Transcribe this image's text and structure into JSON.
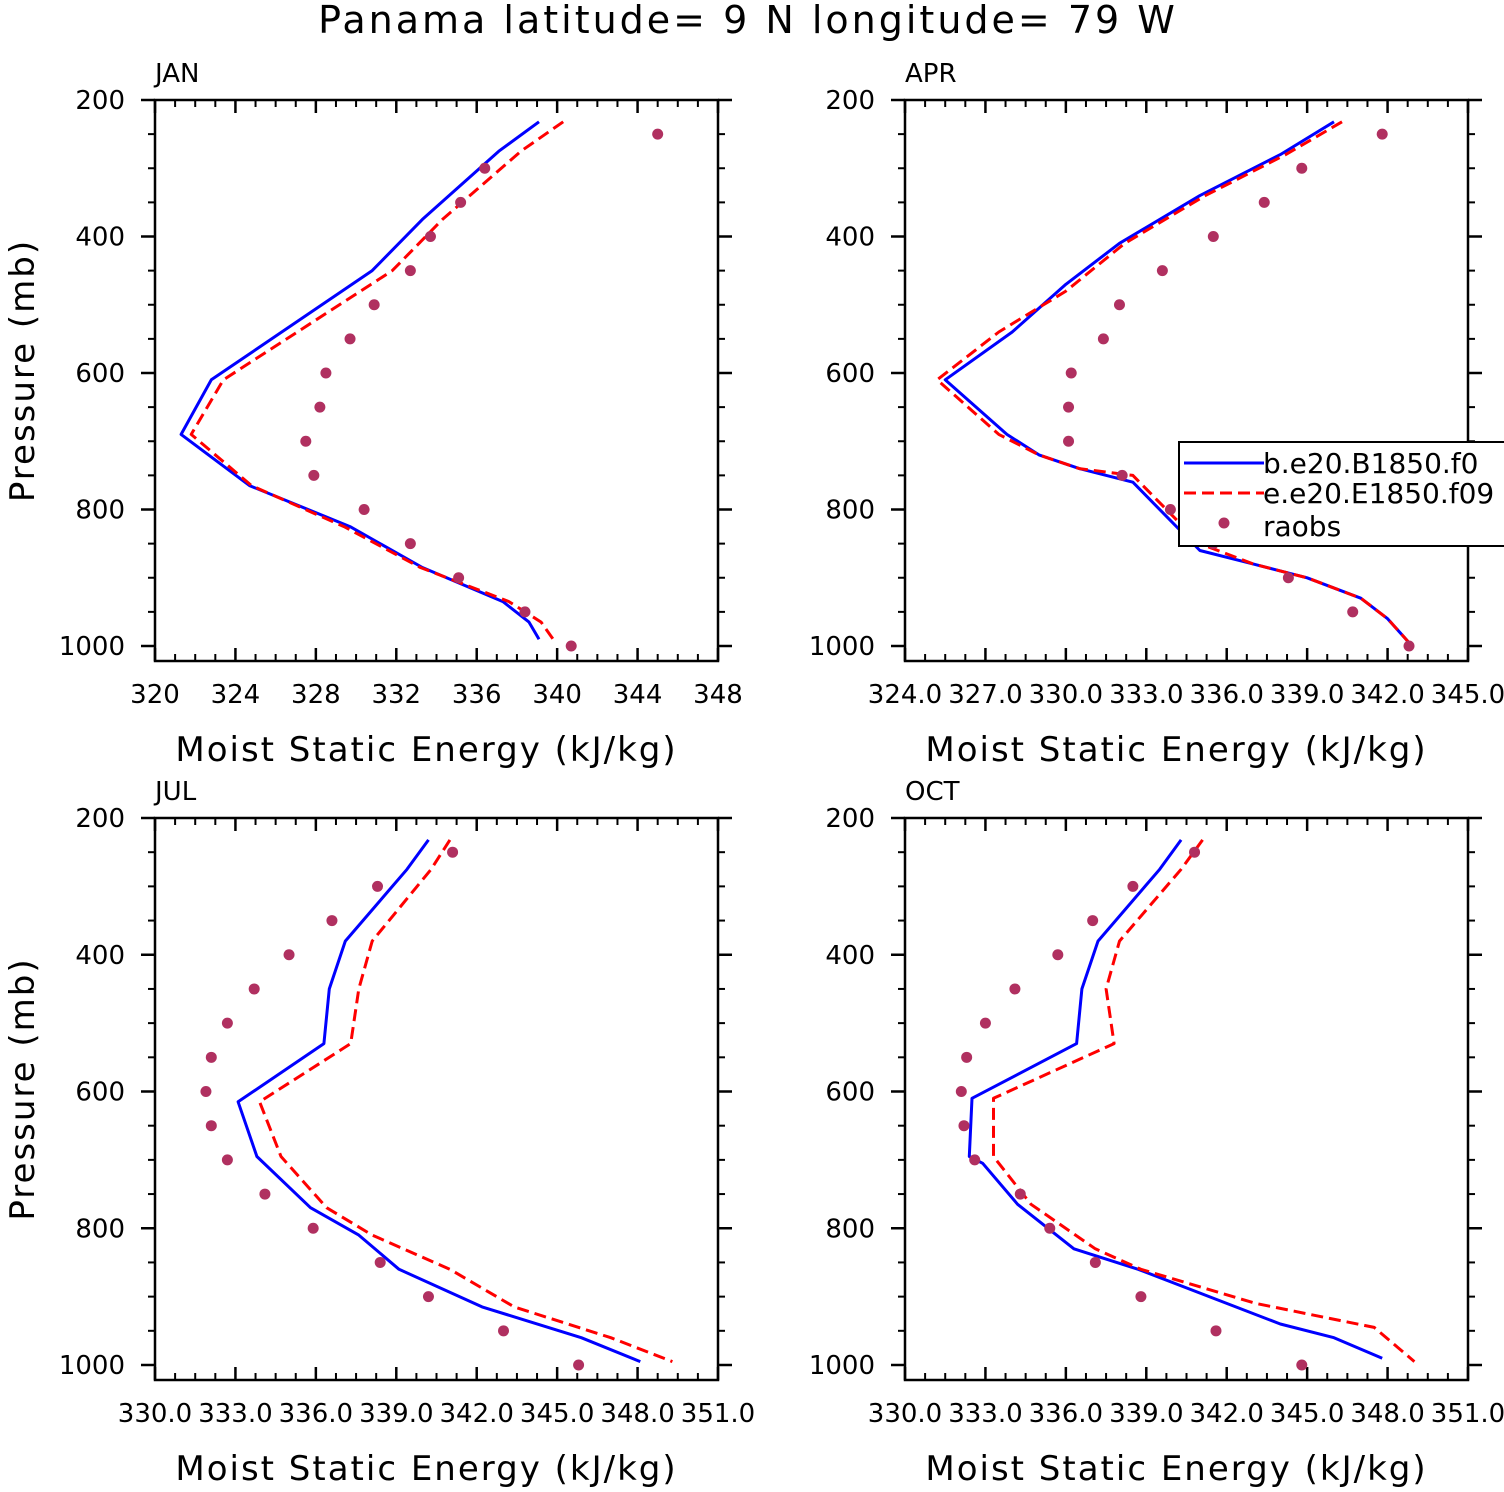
{
  "title": "Panama  latitude= 9 N longitude= 79 W",
  "colors": {
    "b_series": "#0000ff",
    "e_series": "#ff0000",
    "raobs": "#b03060"
  },
  "legend": {
    "items": [
      {
        "name": "b.e20.B1850.f0",
        "style": "solid-line",
        "color": "#0000ff"
      },
      {
        "name": "e.e20.E1850.f09",
        "style": "dashed-line",
        "color": "#ff0000"
      },
      {
        "name": "raobs",
        "style": "markers",
        "color": "#b03060"
      }
    ]
  },
  "chart_data": [
    {
      "type": "line",
      "panel": "JAN",
      "xlabel": "Moist Static Energy (kJ/kg)",
      "ylabel": "Pressure (mb)",
      "xlim": [
        320,
        348
      ],
      "ylim": [
        200,
        1000
      ],
      "x_ticks": [
        "320",
        "324",
        "328",
        "332",
        "336",
        "340",
        "344",
        "348"
      ],
      "y_ticks": [
        "200",
        "400",
        "600",
        "800",
        "1000"
      ],
      "series": [
        {
          "name": "b.e20.B1850.f0",
          "x": [
            339.1,
            337.1,
            333.3,
            330.8,
            322.8,
            321.3,
            324.7,
            329.7,
            333.3,
            337.3,
            338.6,
            339.1
          ],
          "y": [
            232,
            275,
            375,
            450,
            610,
            690,
            765,
            825,
            885,
            935,
            965,
            990
          ]
        },
        {
          "name": "e.e20.E1850.f09",
          "x": [
            340.3,
            338.2,
            334.3,
            331.8,
            323.4,
            321.8,
            324.8,
            329.4,
            333.2,
            337.6,
            339.2,
            339.8
          ],
          "y": [
            232,
            275,
            375,
            450,
            610,
            690,
            765,
            825,
            885,
            935,
            965,
            990
          ]
        },
        {
          "name": "raobs",
          "x": [
            345.0,
            336.4,
            335.2,
            333.7,
            332.7,
            330.9,
            329.7,
            328.5,
            328.2,
            327.5,
            327.9,
            330.4,
            332.7,
            335.1,
            338.4,
            340.7
          ],
          "y": [
            250,
            300,
            350,
            400,
            450,
            500,
            550,
            600,
            650,
            700,
            750,
            800,
            850,
            900,
            950,
            1000
          ]
        }
      ]
    },
    {
      "type": "line",
      "panel": "APR",
      "xlabel": "Moist Static Energy (kJ/kg)",
      "ylabel": "Pressure (mb)",
      "xlim": [
        324.0,
        345.0
      ],
      "ylim": [
        200,
        1000
      ],
      "x_ticks": [
        "324.0",
        "327.0",
        "330.0",
        "333.0",
        "336.0",
        "339.0",
        "342.0",
        "345.0"
      ],
      "y_ticks": [
        "200",
        "400",
        "600",
        "800",
        "1000"
      ],
      "series": [
        {
          "name": "b.e20.B1850.f0",
          "x": [
            340.0,
            338.0,
            335.0,
            332.0,
            330.0,
            328.0,
            325.5,
            327.8,
            329.0,
            330.5,
            332.5,
            335.0,
            337.0,
            339.0,
            341.0,
            342.0,
            342.8
          ],
          "y": [
            232,
            280,
            340,
            410,
            470,
            540,
            610,
            690,
            720,
            740,
            760,
            860,
            880,
            900,
            930,
            960,
            995
          ]
        },
        {
          "name": "e.e20.E1850.f09",
          "x": [
            340.3,
            338.2,
            335.2,
            332.2,
            330.0,
            327.5,
            325.2,
            327.5,
            329.0,
            330.5,
            332.5,
            335.0,
            337.0,
            339.0,
            341.0,
            342.0,
            342.8
          ],
          "y": [
            232,
            280,
            340,
            410,
            480,
            540,
            610,
            690,
            720,
            740,
            750,
            850,
            880,
            900,
            930,
            960,
            995
          ]
        },
        {
          "name": "raobs",
          "x": [
            341.8,
            338.8,
            337.4,
            335.5,
            333.6,
            332.0,
            331.4,
            330.2,
            330.1,
            330.1,
            332.1,
            333.9,
            335.5,
            338.3,
            340.7,
            342.8
          ],
          "y": [
            250,
            300,
            350,
            400,
            450,
            500,
            550,
            600,
            650,
            700,
            750,
            800,
            850,
            900,
            950,
            1000
          ]
        }
      ]
    },
    {
      "type": "line",
      "panel": "JUL",
      "xlabel": "Moist Static Energy (kJ/kg)",
      "ylabel": "Pressure (mb)",
      "xlim": [
        330.0,
        351.0
      ],
      "ylim": [
        200,
        1000
      ],
      "x_ticks": [
        "330.0",
        "333.0",
        "336.0",
        "339.0",
        "342.0",
        "345.0",
        "348.0",
        "351.0"
      ],
      "y_ticks": [
        "200",
        "400",
        "600",
        "800",
        "1000"
      ],
      "series": [
        {
          "name": "b.e20.B1850.f0",
          "x": [
            340.2,
            339.4,
            337.1,
            336.5,
            336.3,
            333.1,
            333.8,
            335.8,
            337.6,
            339.1,
            342.2,
            345.9,
            348.1
          ],
          "y": [
            232,
            275,
            380,
            450,
            530,
            615,
            695,
            770,
            810,
            860,
            915,
            960,
            995
          ]
        },
        {
          "name": "e.e20.E1850.f09",
          "x": [
            341.0,
            340.3,
            338.1,
            337.6,
            337.3,
            333.9,
            334.7,
            336.4,
            338.1,
            341.0,
            343.4,
            347.0,
            349.3
          ],
          "y": [
            232,
            275,
            380,
            450,
            530,
            615,
            695,
            770,
            810,
            860,
            915,
            960,
            995
          ]
        },
        {
          "name": "raobs",
          "x": [
            341.1,
            338.3,
            336.6,
            335.0,
            333.7,
            332.7,
            332.1,
            331.9,
            332.1,
            332.7,
            334.1,
            335.9,
            338.4,
            340.2,
            343.0,
            345.8
          ],
          "y": [
            250,
            300,
            350,
            400,
            450,
            500,
            550,
            600,
            650,
            700,
            750,
            800,
            850,
            900,
            950,
            1000
          ]
        }
      ]
    },
    {
      "type": "line",
      "panel": "OCT",
      "xlabel": "Moist Static Energy (kJ/kg)",
      "ylabel": "Pressure (mb)",
      "xlim": [
        330.0,
        351.0
      ],
      "ylim": [
        200,
        1000
      ],
      "x_ticks": [
        "330.0",
        "333.0",
        "336.0",
        "339.0",
        "342.0",
        "345.0",
        "348.0",
        "351.0"
      ],
      "y_ticks": [
        "200",
        "400",
        "600",
        "800",
        "1000"
      ],
      "series": [
        {
          "name": "b.e20.B1850.f0",
          "x": [
            340.3,
            339.5,
            337.2,
            336.6,
            336.4,
            332.5,
            332.4,
            332.9,
            334.2,
            336.3,
            338.7,
            344.0,
            346.0,
            347.8
          ],
          "y": [
            232,
            275,
            380,
            450,
            530,
            610,
            695,
            705,
            765,
            830,
            860,
            940,
            960,
            990
          ]
        },
        {
          "name": "e.e20.E1850.f09",
          "x": [
            341.1,
            340.3,
            338.0,
            337.5,
            337.8,
            333.3,
            333.3,
            334.7,
            337.1,
            338.8,
            343.1,
            347.5,
            349.0
          ],
          "y": [
            232,
            275,
            380,
            450,
            530,
            610,
            695,
            765,
            830,
            860,
            910,
            945,
            995
          ]
        },
        {
          "name": "raobs",
          "x": [
            340.8,
            338.5,
            337.0,
            335.7,
            334.1,
            333.0,
            332.3,
            332.1,
            332.2,
            332.6,
            334.3,
            335.4,
            337.1,
            338.8,
            341.6,
            344.8
          ],
          "y": [
            250,
            300,
            350,
            400,
            450,
            500,
            550,
            600,
            650,
            700,
            750,
            800,
            850,
            900,
            950,
            1000
          ]
        }
      ]
    }
  ]
}
